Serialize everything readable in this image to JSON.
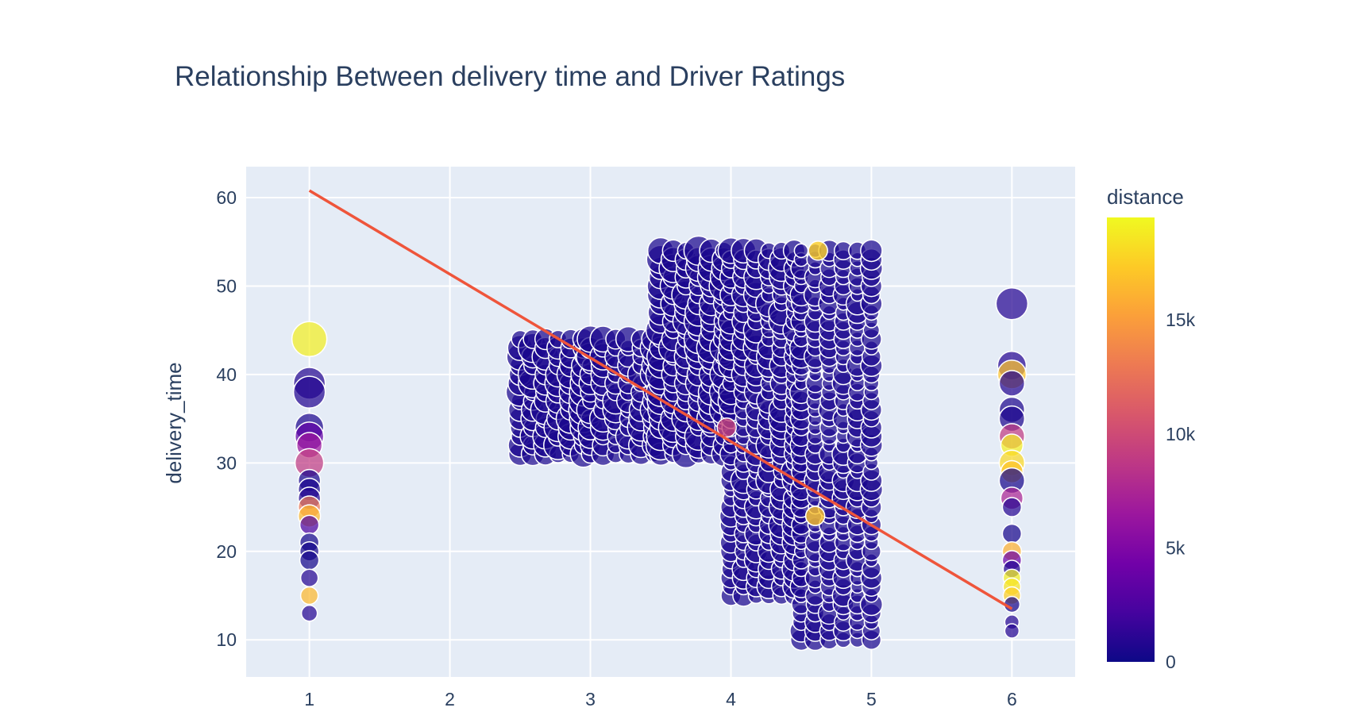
{
  "chart_data": {
    "type": "scatter",
    "title": "Relationship Between delivery time and Driver Ratings",
    "xlabel": "",
    "ylabel": "delivery_time",
    "xlim": [
      0.55,
      6.45
    ],
    "ylim": [
      5.8,
      63.5
    ],
    "xticks": [
      "1",
      "2",
      "3",
      "4",
      "5",
      "6"
    ],
    "yticks": [
      "10",
      "20",
      "30",
      "40",
      "50",
      "60"
    ],
    "grid": true,
    "plot_background": "#e5ecf6",
    "marker_color_scale": "plasma",
    "colorbar": {
      "title": "distance",
      "range": [
        0,
        19500
      ],
      "ticks": [
        "0",
        "5k",
        "10k",
        "15k"
      ],
      "colors": [
        "#0d0887",
        "#46039f",
        "#7201a8",
        "#9c179e",
        "#bd3786",
        "#d8576b",
        "#ed7953",
        "#fb9f3a",
        "#fdca26",
        "#f0f921"
      ]
    },
    "trendline": {
      "color": "#ef553b",
      "x": [
        1,
        6
      ],
      "y": [
        60.8,
        13.5
      ]
    },
    "series": [
      {
        "rating": 1,
        "points": [
          {
            "y": 44,
            "d": 19000,
            "s": 22
          },
          {
            "y": 39,
            "d": 800,
            "s": 20
          },
          {
            "y": 38,
            "d": 800,
            "s": 20
          },
          {
            "y": 34,
            "d": 600,
            "s": 18
          },
          {
            "y": 33,
            "d": 3500,
            "s": 18
          },
          {
            "y": 32,
            "d": 6500,
            "s": 16
          },
          {
            "y": 30,
            "d": 9000,
            "s": 18
          },
          {
            "y": 28,
            "d": 500,
            "s": 14
          },
          {
            "y": 27,
            "d": 500,
            "s": 14
          },
          {
            "y": 26,
            "d": 800,
            "s": 14
          },
          {
            "y": 25,
            "d": 13000,
            "s": 14
          },
          {
            "y": 24,
            "d": 16500,
            "s": 14
          },
          {
            "y": 23,
            "d": 2500,
            "s": 12
          },
          {
            "y": 21,
            "d": 300,
            "s": 12
          },
          {
            "y": 20,
            "d": 300,
            "s": 12
          },
          {
            "y": 19,
            "d": 300,
            "s": 12
          },
          {
            "y": 17,
            "d": 900,
            "s": 11
          },
          {
            "y": 15,
            "d": 16500,
            "s": 11
          },
          {
            "y": 13,
            "d": 900,
            "s": 10
          }
        ]
      },
      {
        "rating": 6,
        "points": [
          {
            "y": 48,
            "d": 900,
            "s": 20
          },
          {
            "y": 41,
            "d": 900,
            "s": 18
          },
          {
            "y": 40,
            "d": 17000,
            "s": 18
          },
          {
            "y": 39,
            "d": 800,
            "s": 16
          },
          {
            "y": 36,
            "d": 600,
            "s": 16
          },
          {
            "y": 35,
            "d": 600,
            "s": 16
          },
          {
            "y": 33,
            "d": 9000,
            "s": 16
          },
          {
            "y": 32,
            "d": 19000,
            "s": 14
          },
          {
            "y": 30,
            "d": 18000,
            "s": 16
          },
          {
            "y": 29,
            "d": 17000,
            "s": 14
          },
          {
            "y": 28,
            "d": 400,
            "s": 16
          },
          {
            "y": 26,
            "d": 7500,
            "s": 14
          },
          {
            "y": 25,
            "d": 900,
            "s": 12
          },
          {
            "y": 22,
            "d": 400,
            "s": 12
          },
          {
            "y": 20,
            "d": 16000,
            "s": 12
          },
          {
            "y": 19,
            "d": 4000,
            "s": 12
          },
          {
            "y": 18,
            "d": 800,
            "s": 11
          },
          {
            "y": 17,
            "d": 19000,
            "s": 11
          },
          {
            "y": 16,
            "d": 18500,
            "s": 11
          },
          {
            "y": 15,
            "d": 17500,
            "s": 11
          },
          {
            "y": 14,
            "d": 400,
            "s": 10
          },
          {
            "y": 12,
            "d": 900,
            "s": 9
          },
          {
            "y": 11,
            "d": 900,
            "s": 9
          }
        ]
      }
    ],
    "dense_regions": [
      {
        "x_range": [
          2.5,
          2.95
        ],
        "y_range": [
          31,
          44
        ],
        "x_step": 0.09,
        "y_step": 1,
        "size": 17,
        "d": 500
      },
      {
        "x_range": [
          3.0,
          3.45
        ],
        "y_range": [
          31,
          44
        ],
        "x_step": 0.09,
        "y_step": 1,
        "size": 16,
        "d": 500
      },
      {
        "x_range": [
          3.5,
          3.95
        ],
        "y_range": [
          31,
          54
        ],
        "x_step": 0.09,
        "y_step": 1,
        "size": 17,
        "d": 500
      },
      {
        "x_range": [
          4.0,
          4.45
        ],
        "y_range": [
          15,
          54
        ],
        "x_step": 0.09,
        "y_step": 1,
        "size": 15,
        "d": 500
      },
      {
        "x_range": [
          4.5,
          5.05
        ],
        "y_range": [
          10,
          54
        ],
        "x_step": 0.1,
        "y_step": 1,
        "size": 13,
        "d": 500
      }
    ],
    "highlights": [
      {
        "x": 3.97,
        "y": 34,
        "d": 9500,
        "s": 12
      },
      {
        "x": 4.6,
        "y": 24,
        "d": 17000,
        "s": 12
      },
      {
        "x": 4.62,
        "y": 54,
        "d": 17500,
        "s": 12
      }
    ]
  }
}
